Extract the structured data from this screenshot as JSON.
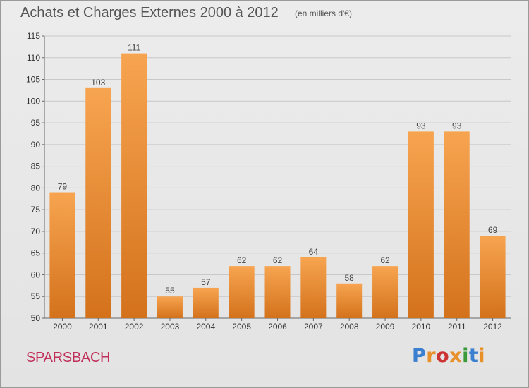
{
  "header": {
    "title": "Achats et Charges Externes 2000 à 2012",
    "unit": "(en milliers d'€)"
  },
  "footer": {
    "commune": "SPARSBACH",
    "logo_text": "Proxiti",
    "logo_colors": [
      "#3a7fd0",
      "#e8902a",
      "#cc3333",
      "#e8902a",
      "#3a9a3a",
      "#3a7fd0",
      "#e8902a"
    ]
  },
  "chart_data": {
    "type": "bar",
    "categories": [
      "2000",
      "2001",
      "2002",
      "2003",
      "2004",
      "2005",
      "2006",
      "2007",
      "2008",
      "2009",
      "2010",
      "2011",
      "2012"
    ],
    "values": [
      79,
      103,
      111,
      55,
      57,
      62,
      62,
      64,
      58,
      62,
      93,
      93,
      69
    ],
    "ylim": [
      50,
      115
    ],
    "yticks": [
      50,
      55,
      60,
      65,
      70,
      75,
      80,
      85,
      90,
      95,
      100,
      105,
      110,
      115
    ],
    "grid": true,
    "bar_color_top": "#f7a450",
    "bar_color_bottom": "#d4721c",
    "xlabel": "",
    "ylabel": ""
  }
}
